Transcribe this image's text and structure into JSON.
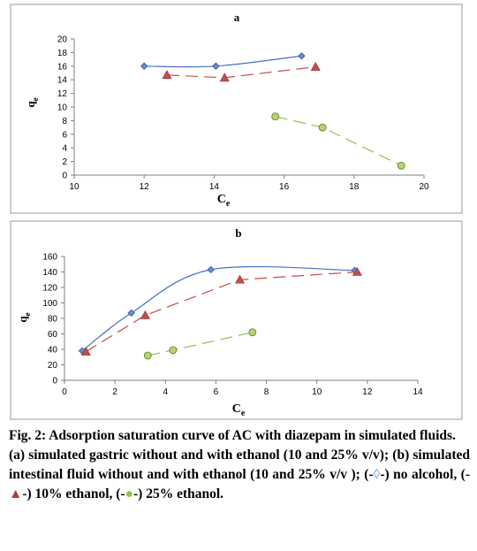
{
  "chart_data": [
    {
      "type": "line",
      "panel_label": "a",
      "xlabel": "C",
      "xlabel_sub": "e",
      "ylabel": "q",
      "ylabel_sub": "e",
      "xlim": [
        10,
        20
      ],
      "ylim": [
        0,
        20
      ],
      "xticks": [
        "10",
        "12",
        "14",
        "16",
        "18",
        "20"
      ],
      "yticks": [
        "0",
        "2",
        "4",
        "6",
        "8",
        "10",
        "12",
        "14",
        "16",
        "18",
        "20"
      ],
      "grid": false,
      "series": [
        {
          "marker": "diamond",
          "color": "#4472c4",
          "line": "smooth",
          "x": [
            12.0,
            14.05,
            16.5
          ],
          "y": [
            16.0,
            16.0,
            17.5
          ]
        },
        {
          "marker": "triangle",
          "color": "#c0504d",
          "line": "dashed",
          "x": [
            12.65,
            14.3,
            16.9
          ],
          "y": [
            14.7,
            14.3,
            15.9
          ]
        },
        {
          "marker": "circle",
          "color": "#9bbb59",
          "line": "dashed",
          "x": [
            15.75,
            17.1,
            19.35
          ],
          "y": [
            8.6,
            7.0,
            1.4
          ]
        }
      ]
    },
    {
      "type": "line",
      "panel_label": "b",
      "xlabel": "C",
      "xlabel_sub": "e",
      "ylabel": "q",
      "ylabel_sub": "e",
      "xlim": [
        0,
        14
      ],
      "ylim": [
        0,
        160
      ],
      "xticks": [
        "0",
        "2",
        "4",
        "6",
        "8",
        "10",
        "12",
        "14"
      ],
      "yticks": [
        "0",
        "20",
        "40",
        "60",
        "80",
        "100",
        "120",
        "140",
        "160"
      ],
      "grid": false,
      "series": [
        {
          "marker": "diamond",
          "color": "#4472c4",
          "line": "smooth",
          "x": [
            0.7,
            2.65,
            5.8,
            11.5
          ],
          "y": [
            38,
            87,
            143,
            142
          ]
        },
        {
          "marker": "triangle",
          "color": "#c0504d",
          "line": "dashed",
          "x": [
            0.85,
            3.2,
            6.95,
            11.6
          ],
          "y": [
            37,
            84,
            130,
            140
          ]
        },
        {
          "marker": "circle",
          "color": "#9bbb59",
          "line": "dashed",
          "x": [
            3.3,
            4.3,
            7.45
          ],
          "y": [
            32,
            39,
            62
          ]
        }
      ]
    }
  ],
  "caption": {
    "line1": "Fig. 2: Adsorption saturation curve of AC with diazepam in simulated fluids.",
    "line2": "(a) simulated gastric without and with ethanol (10 and 25% v/v); (b) simulated intestinal fluid without and with ethanol (10 and 25% v/v ); (",
    "legend_diamond": "◊",
    "legend_no_alcohol": ") no alcohol, (",
    "legend_triangle": "▲",
    "legend_10": ") 10% ethanol, (",
    "legend_dot": "●",
    "legend_25": ") 25% ethanol.",
    "dash": "-"
  }
}
